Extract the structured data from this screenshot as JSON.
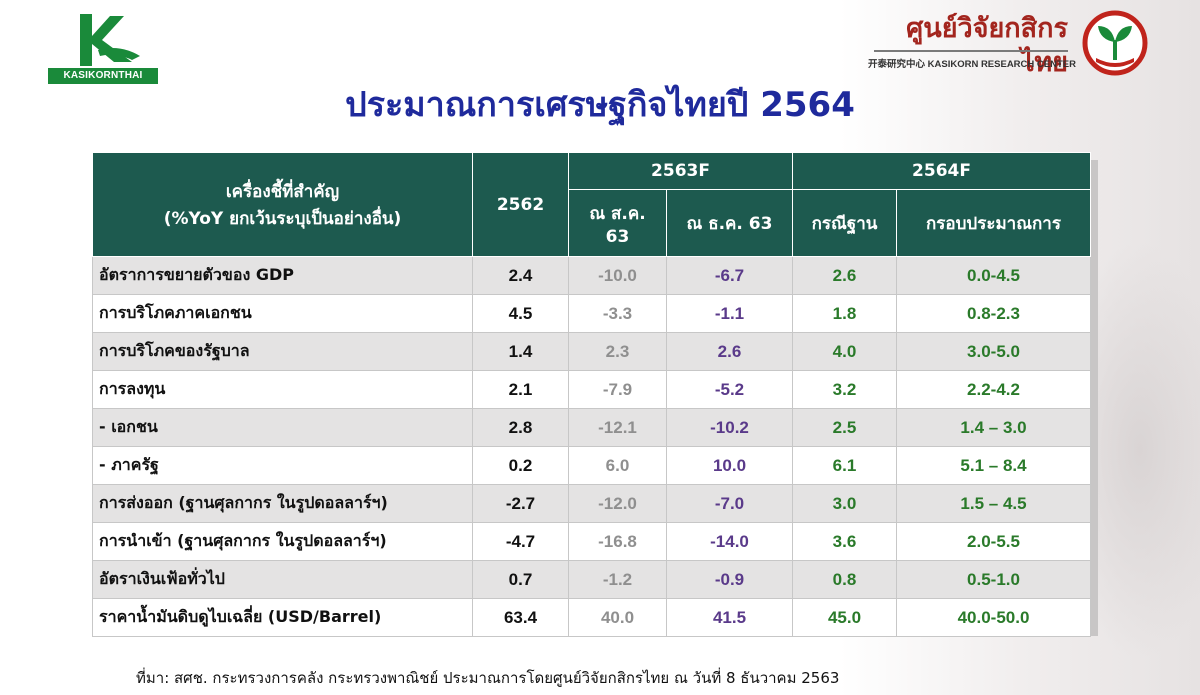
{
  "brand": {
    "left_logo_text": "KASIKORNTHAI",
    "right_logo_thai": "ศูนย์วิจัยกสิกรไทย",
    "right_logo_eng": "开泰研究中心 KASIKORN RESEARCH CENTER",
    "colors": {
      "green": "#1a8a3a",
      "red": "#a3251e",
      "navy": "#1f2a9c",
      "header": "#1d5a4f"
    }
  },
  "title": "ประมาณการเศรษฐกิจไทยปี 2564",
  "table": {
    "headers": {
      "indicator": "เครื่องชี้ที่สำคัญ",
      "indicator_sub": "(%YoY ยกเว้นระบุเป็นอย่างอื่น)",
      "y2562": "2562",
      "f2563": "2563F",
      "f2564": "2564F",
      "aug63": "ณ ส.ค. 63",
      "dec63": "ณ ธ.ค. 63",
      "base": "กรณีฐาน",
      "range": "กรอบประมาณการ"
    },
    "rows": [
      {
        "label": "อัตราการขยายตัวของ GDP",
        "y2562": "2.4",
        "aug": "-10.0",
        "dec": "-6.7",
        "base": "2.6",
        "range": "0.0-4.5"
      },
      {
        "label": "การบริโภคภาคเอกชน",
        "y2562": "4.5",
        "aug": "-3.3",
        "dec": "-1.1",
        "base": "1.8",
        "range": "0.8-2.3"
      },
      {
        "label": "การบริโภคของรัฐบาล",
        "y2562": "1.4",
        "aug": "2.3",
        "dec": "2.6",
        "base": "4.0",
        "range": "3.0-5.0"
      },
      {
        "label": "การลงทุน",
        "y2562": "2.1",
        "aug": "-7.9",
        "dec": "-5.2",
        "base": "3.2",
        "range": "2.2-4.2"
      },
      {
        "label": " - เอกชน",
        "y2562": "2.8",
        "aug": "-12.1",
        "dec": "-10.2",
        "base": "2.5",
        "range": "1.4 – 3.0"
      },
      {
        "label": " - ภาครัฐ",
        "y2562": "0.2",
        "aug": "6.0",
        "dec": "10.0",
        "base": "6.1",
        "range": "5.1 – 8.4"
      },
      {
        "label": "การส่งออก (ฐานศุลกากร ในรูปดอลลาร์ฯ)",
        "y2562": "-2.7",
        "aug": "-12.0",
        "dec": "-7.0",
        "base": "3.0",
        "range": "1.5 – 4.5"
      },
      {
        "label": "การนำเข้า (ฐานศุลกากร ในรูปดอลลาร์ฯ)",
        "y2562": "-4.7",
        "aug": "-16.8",
        "dec": "-14.0",
        "base": "3.6",
        "range": "2.0-5.5"
      },
      {
        "label": "อัตราเงินเฟ้อทั่วไป",
        "y2562": "0.7",
        "aug": "-1.2",
        "dec": "-0.9",
        "base": "0.8",
        "range": "0.5-1.0"
      },
      {
        "label": "ราคาน้ำมันดิบดูไบเฉลี่ย (USD/Barrel)",
        "y2562": "63.4",
        "aug": "40.0",
        "dec": "41.5",
        "base": "45.0",
        "range": "40.0-50.0"
      }
    ]
  },
  "source": "ที่มา: สศช. กระทรวงการคลัง กระทรวงพาณิชย์ ประมาณการโดยศูนย์วิจัยกสิกรไทย ณ วันที่ 8 ธันวาคม 2563"
}
